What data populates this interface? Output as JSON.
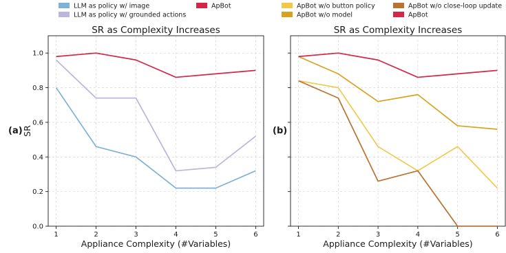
{
  "chart_data": [
    {
      "type": "line",
      "panel_tag": "(a)",
      "title": "SR as Complexity Increases",
      "xlabel": "Appliance Complexity (#Variables)",
      "ylabel": "SR",
      "x": [
        1,
        2,
        3,
        4,
        5,
        6
      ],
      "xlim": [
        0.8,
        6.2
      ],
      "ylim": [
        0.0,
        1.1
      ],
      "xticks": [
        "1",
        "2",
        "3",
        "4",
        "5",
        "6"
      ],
      "yticks": [
        "0.0",
        "0.2",
        "0.4",
        "0.6",
        "0.8",
        "1.0"
      ],
      "grid": true,
      "legend_placement": "above",
      "series": [
        {
          "name": "LLM as policy w/ image",
          "color": "#7fb0d5",
          "values": [
            0.8,
            0.46,
            0.4,
            0.22,
            0.22,
            0.32
          ]
        },
        {
          "name": "LLM as policy w/ grounded actions",
          "color": "#bcb5dc",
          "values": [
            0.96,
            0.74,
            0.74,
            0.32,
            0.34,
            0.52
          ]
        },
        {
          "name": "ApBot",
          "color": "#d62547",
          "values": [
            0.98,
            1.0,
            0.96,
            0.86,
            0.88,
            0.9
          ]
        }
      ]
    },
    {
      "type": "line",
      "panel_tag": "(b)",
      "title": "SR as Complexity Increases",
      "xlabel": "Appliance Complexity (#Variables)",
      "ylabel": "",
      "x": [
        1,
        2,
        3,
        4,
        5,
        6
      ],
      "xlim": [
        0.8,
        6.2
      ],
      "ylim": [
        0.0,
        1.1
      ],
      "xticks": [
        "1",
        "2",
        "3",
        "4",
        "5",
        "6"
      ],
      "yticks": [],
      "grid": true,
      "legend_placement": "above",
      "series": [
        {
          "name": "ApBot w/o button policy",
          "color": "#f2c84b",
          "values": [
            0.84,
            0.8,
            0.46,
            0.32,
            0.46,
            0.22
          ]
        },
        {
          "name": "ApBot w/o model",
          "color": "#d8a21e",
          "values": [
            0.98,
            0.88,
            0.72,
            0.76,
            0.58,
            0.56
          ]
        },
        {
          "name": "ApBot w/o close-loop update",
          "color": "#b87333",
          "values": [
            0.84,
            0.74,
            0.26,
            0.32,
            0.0,
            0.0
          ]
        },
        {
          "name": "ApBot",
          "color": "#d62547",
          "values": [
            0.98,
            1.0,
            0.96,
            0.86,
            0.88,
            0.9
          ]
        }
      ]
    }
  ]
}
